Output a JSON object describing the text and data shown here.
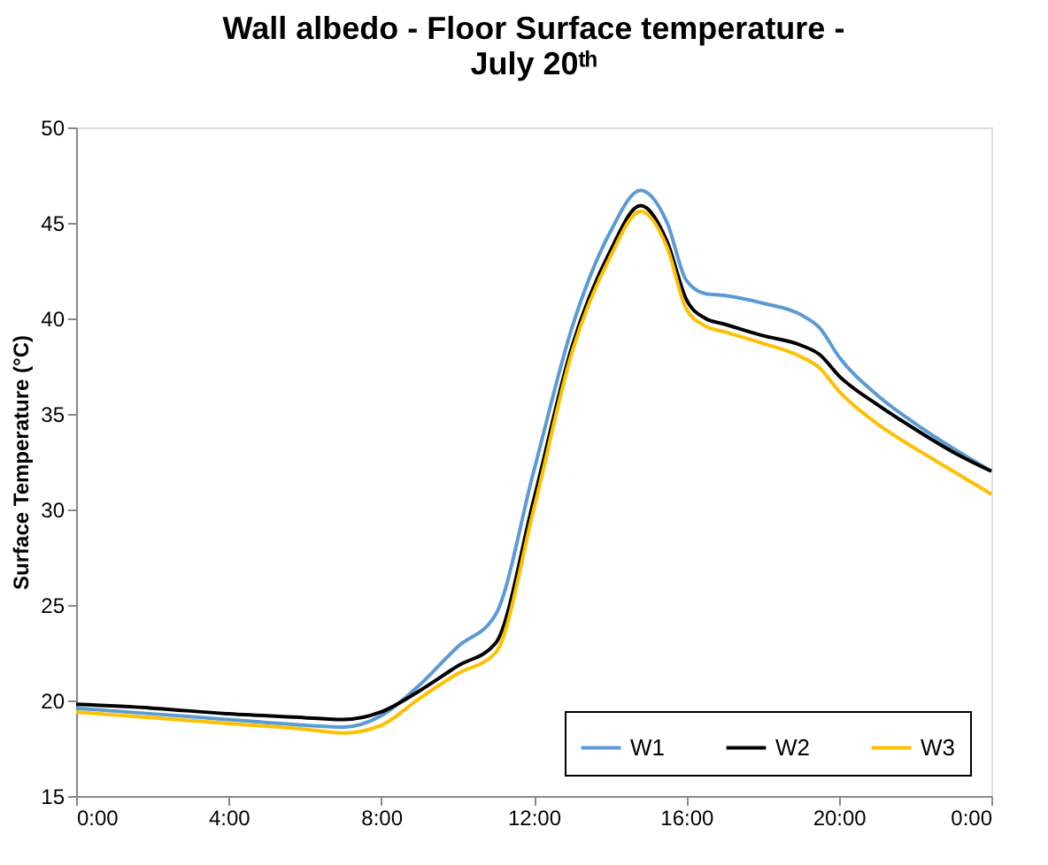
{
  "chart_data": {
    "type": "line",
    "title": "Wall albedo - Floor Surface temperature - July 20ᵗʰ",
    "ylabel": "Surface Temperature (°C)",
    "x": [
      0,
      2,
      4,
      6,
      7,
      8,
      9,
      10,
      11,
      12,
      13,
      14,
      14.8,
      15.5,
      16,
      16.5,
      17,
      18,
      19,
      19.5,
      20,
      21,
      22,
      23,
      24
    ],
    "series": [
      {
        "name": "W1",
        "color": "#5b9bd5",
        "values": [
          19.6,
          19.3,
          19.0,
          18.7,
          18.6,
          19.2,
          20.8,
          22.8,
          24.5,
          32,
          39.5,
          44.5,
          46.7,
          45,
          42,
          41.3,
          41.2,
          40.8,
          40.2,
          39.5,
          38,
          36,
          34.5,
          33.2,
          32
        ]
      },
      {
        "name": "W2",
        "color": "#000000",
        "values": [
          19.8,
          19.6,
          19.3,
          19.1,
          19.0,
          19.4,
          20.5,
          21.8,
          23,
          30.5,
          38.5,
          43.5,
          45.9,
          44,
          41,
          40,
          39.7,
          39.1,
          38.6,
          38.1,
          37,
          35.5,
          34.2,
          33,
          32
        ]
      },
      {
        "name": "W3",
        "color": "#ffc000",
        "values": [
          19.4,
          19.1,
          18.8,
          18.5,
          18.3,
          18.7,
          20.1,
          21.4,
          22.5,
          30,
          38.2,
          43.2,
          45.6,
          43.7,
          40.5,
          39.6,
          39.3,
          38.7,
          38,
          37.4,
          36.2,
          34.5,
          33.2,
          32,
          30.8
        ]
      }
    ],
    "xlim": [
      0,
      24
    ],
    "xticks": [
      {
        "value": 0,
        "label": "0:00"
      },
      {
        "value": 4,
        "label": "4:00"
      },
      {
        "value": 8,
        "label": "8:00"
      },
      {
        "value": 12,
        "label": "12:00"
      },
      {
        "value": 16,
        "label": "16:00"
      },
      {
        "value": 20,
        "label": "20:00"
      },
      {
        "value": 24,
        "label": "0:00"
      }
    ],
    "ylim": [
      15,
      50
    ],
    "yticks": [
      15,
      20,
      25,
      30,
      35,
      40,
      45,
      50
    ],
    "grid": false,
    "legend": "bottom right",
    "marker": "none",
    "line_style": "solid"
  }
}
